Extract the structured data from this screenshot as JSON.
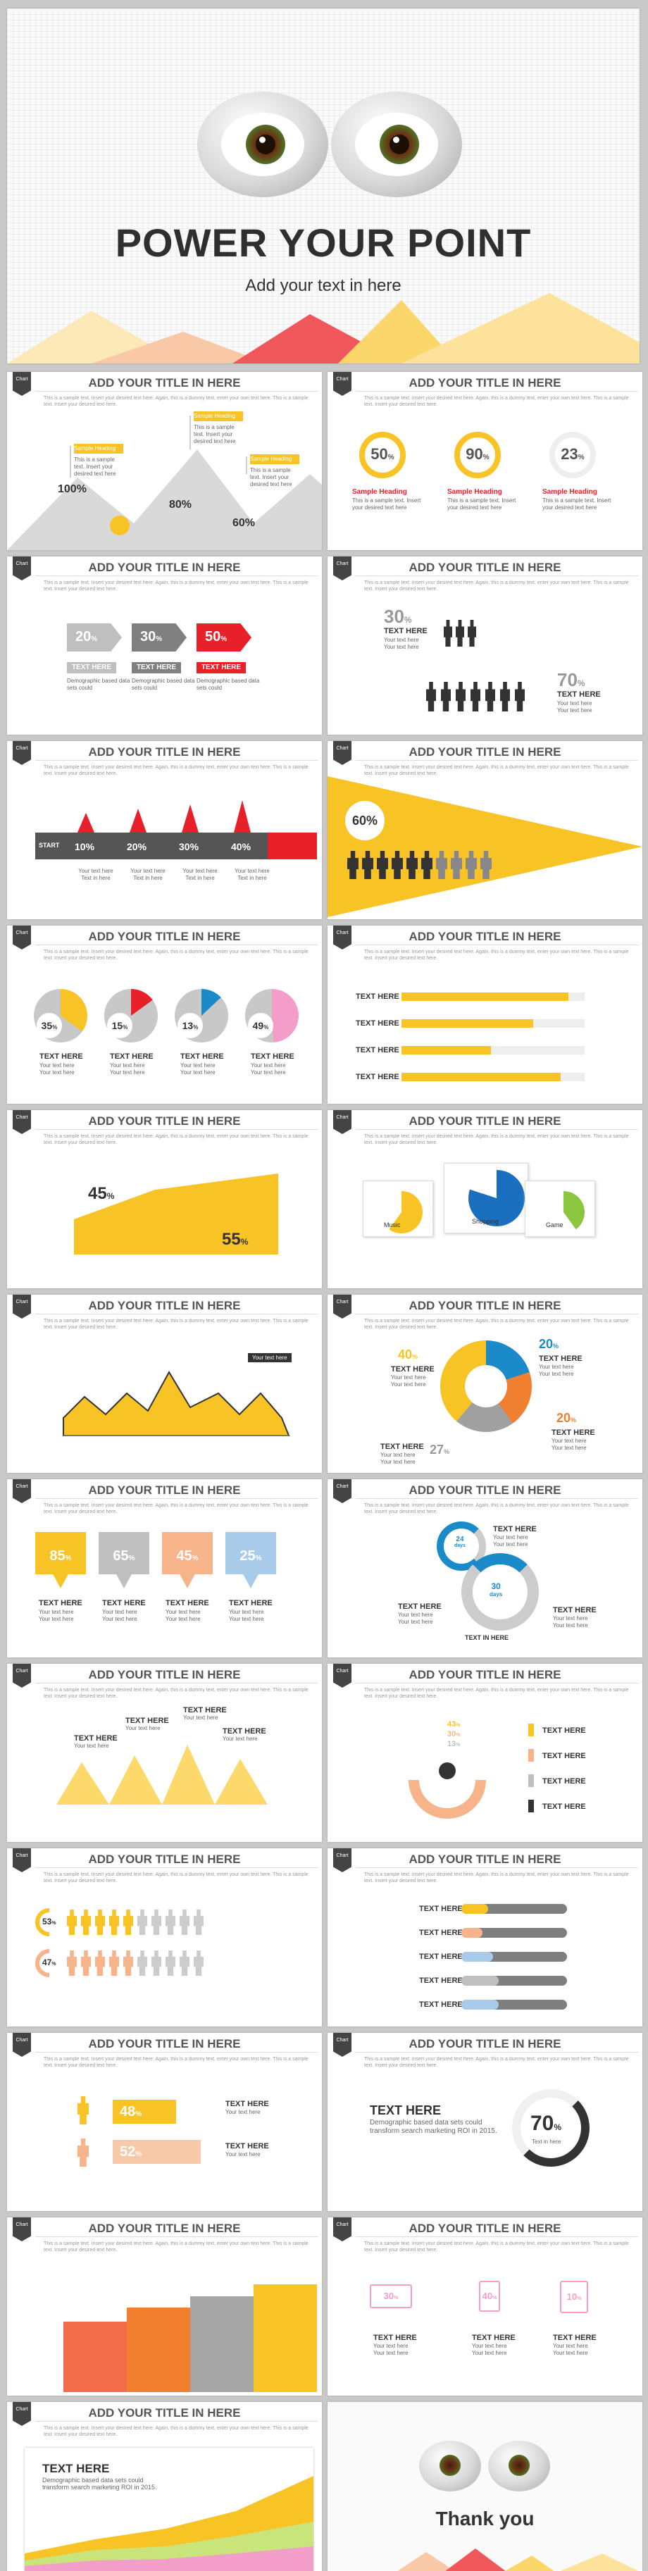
{
  "hero": {
    "title": "POWER YOUR POINT",
    "subtitle": "Add your text in here"
  },
  "common": {
    "slide_title": "ADD YOUR TITLE IN HERE",
    "tag": "Chart",
    "para": "This is a sample text. Insert your desired text here. Again, this is a dummy text, enter your own text here. This is a sample text. Insert your desired text here.",
    "small": "This is a sample text. Insert your desired text here",
    "your_text": "Your text here",
    "text_here": "TEXT HERE",
    "text_in_here": "TEXT IN HERE",
    "text_in_here_mixed": "Text in here",
    "sample_heading": "Sample Heading",
    "demo": "Demographic based data sets could",
    "demo2": "Demographic based data sets could transform search marketing ROI in 2015."
  },
  "s1": {
    "values": [
      "100%",
      "80%",
      "60%"
    ]
  },
  "s2": {
    "values": [
      "50",
      "90",
      "23"
    ],
    "unit": "%"
  },
  "s3": {
    "values": [
      "20",
      "30",
      "50"
    ],
    "unit": "%"
  },
  "s4": {
    "values": [
      "30",
      "70"
    ],
    "unit": "%"
  },
  "s5": {
    "start": "START",
    "values": [
      "10%",
      "20%",
      "30%",
      "40%"
    ]
  },
  "s6": {
    "value": "60%"
  },
  "s7": {
    "values": [
      "35",
      "15",
      "13",
      "49"
    ],
    "unit": "%",
    "fills": [
      0.35,
      0.15,
      0.13,
      0.49
    ],
    "colors": [
      "#f7c325",
      "#e8202a",
      "#1a8bc8",
      "#f29ec8"
    ]
  },
  "s8": {
    "fills": [
      0.91,
      0.72,
      0.49,
      0.87
    ]
  },
  "s9": {
    "v1": "45",
    "v2": "55",
    "unit": "%"
  },
  "s10": {
    "labels": [
      "Music",
      "Shopping",
      "Game"
    ]
  },
  "s11": {
    "callout": "Your text here"
  },
  "s12": {
    "values": [
      "40",
      "20",
      "20",
      "27"
    ],
    "unit": "%"
  },
  "s13": {
    "values": [
      "85",
      "65",
      "45",
      "25"
    ],
    "unit": "%",
    "colors": [
      "#f7c325",
      "#bfbfbf",
      "#f7b48a",
      "#a9cbea"
    ]
  },
  "s14": {
    "values": [
      "24",
      "30"
    ],
    "unit": "days"
  },
  "s16": {
    "values": [
      "43",
      "30",
      "13"
    ],
    "unit": "%",
    "colors": [
      "#f7c325",
      "#f7b48a",
      "#bfbfbf",
      "#333333"
    ]
  },
  "s17": {
    "values": [
      "53",
      "47"
    ],
    "unit": "%"
  },
  "s18": {
    "fills": [
      0.25,
      0.2,
      0.3,
      0.35,
      0.35
    ],
    "colors": [
      "#f7c325",
      "#f7b48a",
      "#a9cbea",
      "#bfbfbf",
      "#a9cbea"
    ]
  },
  "s19": {
    "values": [
      "48",
      "52"
    ],
    "unit": "%"
  },
  "s20": {
    "value": "70",
    "unit": "%",
    "caption": "Text in here"
  },
  "s22": {
    "values": [
      "30",
      "40",
      "10"
    ],
    "unit": "%"
  },
  "end": {
    "thanks": "Thank you"
  }
}
